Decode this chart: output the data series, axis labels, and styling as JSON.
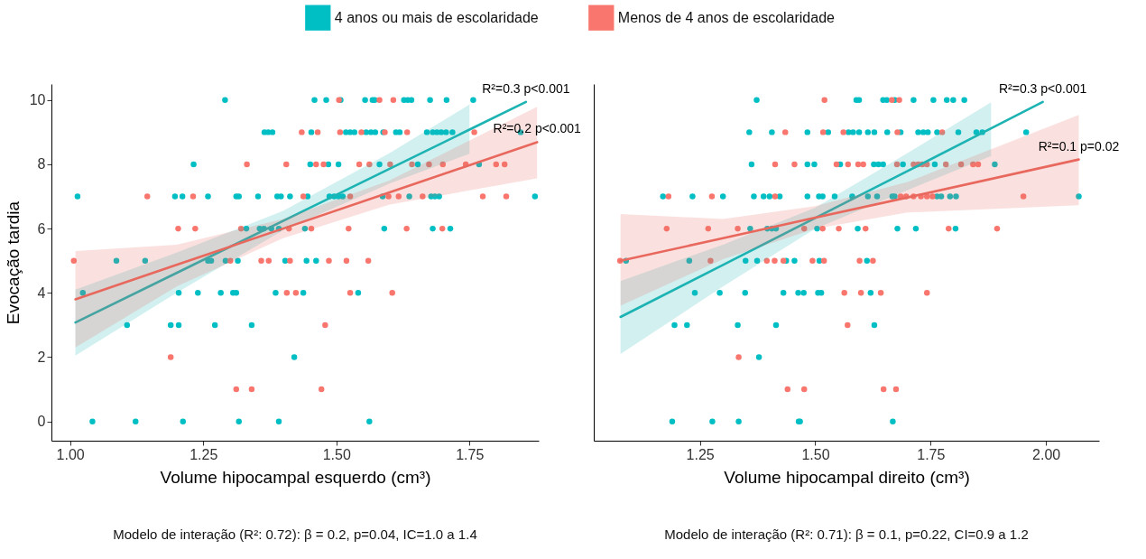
{
  "chart_data": [
    {
      "type": "scatter",
      "xlabel": "Volume hipocampal esquerdo (cm³)",
      "ylabel": "Evocação tardia",
      "xlim": [
        0.965,
        1.88
      ],
      "ylim": [
        -0.6,
        10.5
      ],
      "xticks": [
        {
          "value": 1,
          "label": "1.00"
        },
        {
          "value": 1.25,
          "label": "1.25"
        },
        {
          "value": 1.5,
          "label": "1.50"
        },
        {
          "value": 1.75,
          "label": "1.75"
        }
      ],
      "yticks": [
        0,
        2,
        4,
        6,
        8,
        10
      ],
      "marker": "circle",
      "legend": "top",
      "series": [
        {
          "name": "4 anos ou mais de escolaridade",
          "color": "#00bfc4",
          "x": [
            1.291,
            1.459,
            1.481,
            1.508,
            1.554,
            1.568,
            1.572,
            1.627,
            1.634,
            1.641,
            1.676,
            1.707,
            1.757,
            1.365,
            1.372,
            1.38,
            1.453,
            1.518,
            1.526,
            1.534,
            1.556,
            1.565,
            1.573,
            1.588,
            1.612,
            1.619,
            1.67,
            1.681,
            1.689,
            1.697,
            1.706,
            1.718,
            1.846,
            1.232,
            1.451,
            1.485,
            1.504,
            1.581,
            1.653,
            1.768,
            1.014,
            1.197,
            1.211,
            1.259,
            1.312,
            1.317,
            1.353,
            1.389,
            1.396,
            1.413,
            1.446,
            1.487,
            1.496,
            1.504,
            1.512,
            1.587,
            1.637,
            1.678,
            1.685,
            1.693,
            1.873,
            1.331,
            1.356,
            1.364,
            1.378,
            1.392,
            1.441,
            1.59,
            1.681,
            1.714,
            1.087,
            1.141,
            1.259,
            1.265,
            1.292,
            1.315,
            1.404,
            1.444,
            1.462,
            1.024,
            1.204,
            1.24,
            1.283,
            1.306,
            1.312,
            1.386,
            1.438,
            1.541,
            1.107,
            1.189,
            1.204,
            1.272,
            1.341,
            1.421,
            1.042,
            1.123,
            1.212,
            1.317,
            1.392,
            1.562
          ],
          "values": [
            10,
            10,
            10,
            10,
            10,
            10,
            10,
            10,
            10,
            10,
            10,
            10,
            10,
            9,
            9,
            9,
            9,
            9,
            9,
            9,
            9,
            9,
            9,
            9,
            9,
            9,
            9,
            9,
            9,
            9,
            9,
            9,
            9,
            8,
            8,
            8,
            8,
            8,
            8,
            8,
            7,
            7,
            7,
            7,
            7,
            7,
            7,
            7,
            7,
            7,
            7,
            7,
            7,
            7,
            7,
            7,
            7,
            7,
            7,
            7,
            7,
            6,
            6,
            6,
            6,
            6,
            6,
            6,
            6,
            6,
            5,
            5,
            5,
            5,
            5,
            5,
            5,
            5,
            5,
            4,
            4,
            4,
            4,
            4,
            4,
            4,
            4,
            4,
            3,
            3,
            3,
            3,
            3,
            2,
            0,
            0,
            0,
            0,
            0,
            0
          ]
        },
        {
          "name": "Menos de 4 anos de escolaridade",
          "color": "#f8766d",
          "x": [
            1.505,
            1.581,
            1.607,
            1.435,
            1.465,
            1.507,
            1.547,
            1.591,
            1.633,
            1.759,
            1.332,
            1.406,
            1.462,
            1.476,
            1.543,
            1.562,
            1.601,
            1.642,
            1.674,
            1.7,
            1.743,
            1.8,
            1.816,
            1.145,
            1.231,
            1.438,
            1.526,
            1.598,
            1.617,
            1.662,
            1.775,
            1.819,
            1.203,
            1.235,
            1.321,
            1.411,
            1.453,
            1.523,
            1.632,
            1.699,
            1.007,
            1.301,
            1.359,
            1.373,
            1.413,
            1.486,
            1.519,
            1.56,
            1.407,
            1.424,
            1.526,
            1.605,
            1.479,
            1.189,
            1.312,
            1.341,
            1.472
          ],
          "values": [
            10,
            10,
            10,
            9,
            9,
            9,
            9,
            9,
            9,
            9,
            8,
            8,
            8,
            8,
            8,
            8,
            8,
            8,
            8,
            8,
            8,
            8,
            8,
            7,
            7,
            7,
            7,
            7,
            7,
            7,
            7,
            7,
            6,
            6,
            6,
            6,
            6,
            6,
            6,
            6,
            5,
            5,
            5,
            5,
            5,
            5,
            5,
            5,
            4,
            4,
            4,
            4,
            3,
            2,
            1,
            1,
            1
          ]
        },
        {
          "type": "line",
          "marker": "none",
          "color": "#1db3b3",
          "x": [
            1.01,
            1.2,
            1.4,
            1.6,
            1.75,
            1.856
          ],
          "values": [
            3.08,
            4.62,
            6.24,
            7.86,
            9.08,
            9.94
          ],
          "lower": [
            2.05,
            4.0,
            5.95,
            7.4,
            8.33,
            null
          ],
          "upper": [
            4.1,
            5.25,
            6.55,
            8.35,
            9.86,
            null
          ]
        },
        {
          "type": "line",
          "marker": "none",
          "color": "#e8685e",
          "x": [
            1.01,
            1.2,
            1.4,
            1.6,
            1.877
          ],
          "values": [
            3.8,
            4.87,
            6.0,
            7.13,
            8.69
          ],
          "lower": [
            2.3,
            4.2,
            5.7,
            6.75,
            7.56
          ],
          "upper": [
            5.3,
            5.5,
            6.3,
            7.5,
            9.79
          ]
        }
      ],
      "annotations": [
        {
          "text": "R²=0.3 p<0.001",
          "x": 1.856,
          "y": 9.94
        },
        {
          "text": "R²=0.2 p<0.001",
          "x": 1.877,
          "y": 8.69
        },
        "Modelo de interação (R²: 0.72): β = 0.2, p=0.04, IC=1.0 a 1.4"
      ]
    },
    {
      "type": "scatter",
      "xlabel": "Volume hipocampal direito (cm³)",
      "xlim": [
        1.02,
        2.115
      ],
      "ylim": [
        -0.6,
        10.5
      ],
      "xticks": [
        {
          "value": 1.25,
          "label": "1.25"
        },
        {
          "value": 1.5,
          "label": "1.50"
        },
        {
          "value": 1.75,
          "label": "1.75"
        },
        {
          "value": 2,
          "label": "2.00"
        }
      ],
      "yticks": [
        0,
        2,
        4,
        6,
        8,
        10
      ],
      "marker": "circle",
      "tick_labels": "x",
      "series": [
        {
          "color": "#00bfc4",
          "x": [
            1.373,
            1.589,
            1.595,
            1.647,
            1.655,
            1.672,
            1.713,
            1.756,
            1.785,
            1.799,
            1.823,
            1.357,
            1.406,
            1.483,
            1.528,
            1.572,
            1.582,
            1.595,
            1.614,
            1.628,
            1.656,
            1.685,
            1.723,
            1.734,
            1.744,
            1.764,
            1.81,
            1.849,
            1.862,
            1.957,
            1.362,
            1.483,
            1.498,
            1.554,
            1.627,
            1.637,
            1.647,
            1.69,
            1.759,
            1.889,
            1.17,
            1.234,
            1.3,
            1.367,
            1.388,
            1.401,
            1.423,
            1.483,
            1.508,
            1.516,
            1.542,
            1.58,
            1.614,
            1.634,
            1.667,
            1.672,
            1.764,
            1.773,
            1.792,
            1.805,
            2.071,
            1.359,
            1.396,
            1.406,
            1.415,
            1.504,
            1.592,
            1.678,
            1.718,
            1.804,
            1.09,
            1.227,
            1.349,
            1.374,
            1.437,
            1.455,
            1.509,
            1.612,
            1.239,
            1.293,
            1.348,
            1.431,
            1.463,
            1.475,
            1.506,
            1.513,
            1.62,
            1.195,
            1.222,
            1.332,
            1.415,
            1.628,
            1.378,
            1.19,
            1.277,
            1.334,
            1.464,
            1.467,
            1.668
          ],
          "values": [
            10,
            10,
            10,
            10,
            10,
            10,
            10,
            10,
            10,
            10,
            10,
            9,
            9,
            9,
            9,
            9,
            9,
            9,
            9,
            9,
            9,
            9,
            9,
            9,
            9,
            9,
            9,
            9,
            9,
            9,
            8,
            8,
            8,
            8,
            8,
            8,
            8,
            8,
            8,
            8,
            7,
            7,
            7,
            7,
            7,
            7,
            7,
            7,
            7,
            7,
            7,
            7,
            7,
            7,
            7,
            7,
            7,
            7,
            7,
            7,
            7,
            6,
            6,
            6,
            6,
            6,
            6,
            6,
            6,
            6,
            5,
            5,
            5,
            5,
            5,
            5,
            5,
            5,
            4,
            4,
            4,
            4,
            4,
            4,
            4,
            4,
            4,
            3,
            3,
            3,
            3,
            3,
            2,
            0,
            0,
            0,
            0,
            0,
            0
          ]
        },
        {
          "color": "#f8766d",
          "x": [
            1.52,
            1.666,
            1.682,
            1.435,
            1.517,
            1.561,
            1.678,
            1.775,
            1.413,
            1.455,
            1.546,
            1.571,
            1.593,
            1.604,
            1.677,
            1.713,
            1.723,
            1.732,
            1.742,
            1.783,
            1.816,
            1.842,
            1.853,
            1.182,
            1.276,
            1.413,
            1.685,
            1.697,
            1.713,
            1.729,
            1.742,
            1.754,
            1.951,
            1.178,
            1.268,
            1.332,
            1.476,
            1.516,
            1.551,
            1.609,
            1.789,
            1.894,
            1.077,
            1.273,
            1.395,
            1.412,
            1.431,
            1.494,
            1.519,
            1.596,
            1.625,
            1.563,
            1.599,
            1.642,
            1.742,
            1.57,
            1.334,
            1.44,
            1.476,
            1.648,
            1.675
          ],
          "values": [
            10,
            10,
            10,
            9,
            9,
            9,
            9,
            9,
            8,
            8,
            8,
            8,
            8,
            8,
            8,
            8,
            8,
            8,
            8,
            8,
            8,
            8,
            8,
            7,
            7,
            7,
            7,
            7,
            7,
            7,
            7,
            7,
            7,
            6,
            6,
            6,
            6,
            6,
            6,
            6,
            6,
            6,
            5,
            5,
            5,
            5,
            5,
            5,
            5,
            5,
            5,
            4,
            4,
            4,
            4,
            3,
            2,
            1,
            1,
            1,
            1
          ]
        },
        {
          "type": "line",
          "marker": "none",
          "color": "#1db3b3",
          "x": [
            1.078,
            1.3,
            1.5,
            1.7,
            1.881,
            1.993
          ],
          "values": [
            3.25,
            4.87,
            6.33,
            7.79,
            9.12,
            9.94
          ],
          "lower": [
            2.1,
            4.2,
            6.0,
            7.2,
            8.26,
            null
          ],
          "upper": [
            4.37,
            5.5,
            6.65,
            8.35,
            9.93,
            null
          ]
        },
        {
          "type": "line",
          "marker": "none",
          "color": "#e8685e",
          "x": [
            1.078,
            1.3,
            1.5,
            1.7,
            2.071
          ],
          "values": [
            5.0,
            5.7,
            6.34,
            6.97,
            8.15
          ],
          "lower": [
            3.6,
            5.05,
            6.0,
            6.5,
            6.73
          ],
          "upper": [
            6.45,
            6.3,
            6.7,
            7.45,
            9.54
          ]
        }
      ],
      "annotations": [
        {
          "text": "R²=0.3 p<0.001",
          "x": 1.993,
          "y": 9.94
        },
        {
          "text": "R²=0.1 p=0.02",
          "x": 2.071,
          "y": 8.15
        },
        "Modelo de interação (R²: 0.71): β = 0.1, p=0.22, CI=0.9 a 1.2"
      ]
    }
  ]
}
